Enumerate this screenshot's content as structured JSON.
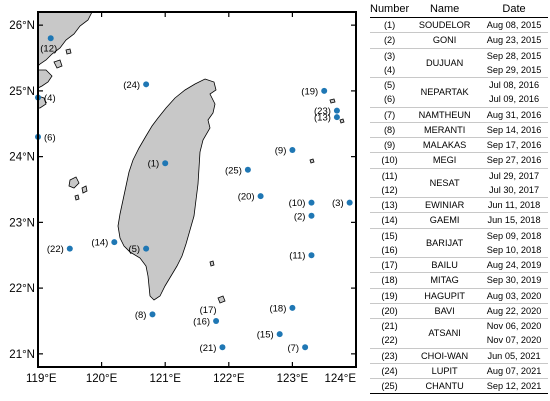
{
  "map": {
    "lat_labels": [
      "26°N",
      "25°N",
      "24°N",
      "23°N",
      "22°N",
      "21°N"
    ],
    "lon_labels": [
      "119°E",
      "120°E",
      "121°E",
      "122°E",
      "123°E",
      "124°E"
    ],
    "lat_values": [
      26,
      25,
      24,
      23,
      22,
      21
    ],
    "lon_values": [
      119,
      120,
      121,
      122,
      123,
      124
    ],
    "lat_range": [
      20.8,
      26.2
    ],
    "lon_range": [
      119.0,
      124.0
    ],
    "land_color": "#c8c8c8",
    "point_color": "#1f77b4",
    "points": [
      {
        "label": "(1)",
        "lat": 23.9,
        "lon": 121.0,
        "label_side": "left"
      },
      {
        "label": "(2)",
        "lat": 23.1,
        "lon": 123.3,
        "label_side": "left"
      },
      {
        "label": "(3)",
        "lat": 23.3,
        "lon": 123.9,
        "label_side": "left"
      },
      {
        "label": "(4)",
        "lat": 24.9,
        "lon": 119.0,
        "label_side": "right"
      },
      {
        "label": "(5)",
        "lat": 22.6,
        "lon": 120.7,
        "label_side": "left"
      },
      {
        "label": "(6)",
        "lat": 24.3,
        "lon": 119.0,
        "label_side": "right"
      },
      {
        "label": "(7)",
        "lat": 21.1,
        "lon": 123.2,
        "label_side": "left"
      },
      {
        "label": "(8)",
        "lat": 21.6,
        "lon": 120.8,
        "label_side": "left"
      },
      {
        "label": "(9)",
        "lat": 24.1,
        "lon": 123.0,
        "label_side": "left"
      },
      {
        "label": "(10)",
        "lat": 23.3,
        "lon": 123.3,
        "label_side": "left"
      },
      {
        "label": "(11)",
        "lat": 22.5,
        "lon": 123.3,
        "label_side": "left"
      },
      {
        "label": "(12)",
        "lat": 25.8,
        "lon": 119.2,
        "label_side": "below"
      },
      {
        "label": "(13)",
        "lat": 24.6,
        "lon": 123.7,
        "label_side": "left"
      },
      {
        "label": "(14)",
        "lat": 22.7,
        "lon": 120.2,
        "label_side": "left"
      },
      {
        "label": "(15)",
        "lat": 21.3,
        "lon": 122.8,
        "label_side": "left"
      },
      {
        "label": "(16)",
        "lat": 21.5,
        "lon": 121.8,
        "label_side": "left"
      },
      {
        "label": "(17)",
        "lat": 21.5,
        "lon": 121.8,
        "label_side": "above"
      },
      {
        "label": "(18)",
        "lat": 21.7,
        "lon": 123.0,
        "label_side": "left"
      },
      {
        "label": "(19)",
        "lat": 25.0,
        "lon": 123.5,
        "label_side": "left"
      },
      {
        "label": "(20)",
        "lat": 23.4,
        "lon": 122.5,
        "label_side": "left"
      },
      {
        "label": "(21)",
        "lat": 21.1,
        "lon": 121.9,
        "label_side": "left"
      },
      {
        "label": "(22)",
        "lat": 22.6,
        "lon": 119.5,
        "label_side": "left"
      },
      {
        "label": "(23)",
        "lat": 24.7,
        "lon": 123.7,
        "label_side": "left"
      },
      {
        "label": "(24)",
        "lat": 25.1,
        "lon": 120.7,
        "label_side": "left"
      },
      {
        "label": "(25)",
        "lat": 23.8,
        "lon": 122.3,
        "label_side": "left"
      }
    ]
  },
  "table": {
    "headers": [
      "Number",
      "Name",
      "Date"
    ],
    "rows": [
      [
        "(1)",
        "SOUDELOR",
        "Aug 08, 2015"
      ],
      [
        "(2)",
        "GONI",
        "Aug 23, 2015"
      ],
      [
        "(3)",
        "DUJUAN",
        "Sep 28, 2015"
      ],
      [
        "(4)",
        "",
        "Sep 29, 2015"
      ],
      [
        "(5)",
        "NEPARTAK",
        "Jul 08, 2016"
      ],
      [
        "(6)",
        "",
        "Jul 09, 2016"
      ],
      [
        "(7)",
        "NAMTHEUN",
        "Aug 31, 2016"
      ],
      [
        "(8)",
        "MERANTI",
        "Sep 14, 2016"
      ],
      [
        "(9)",
        "MALAKAS",
        "Sep 17, 2016"
      ],
      [
        "(10)",
        "MEGI",
        "Sep 27, 2016"
      ],
      [
        "(11)",
        "NESAT",
        "Jul 29, 2017"
      ],
      [
        "(12)",
        "",
        "Jul 30, 2017"
      ],
      [
        "(13)",
        "EWINIAR",
        "Jun 11, 2018"
      ],
      [
        "(14)",
        "GAEMI",
        "Jun 15, 2018"
      ],
      [
        "(15)",
        "BARIJAT",
        "Sep 09, 2018"
      ],
      [
        "(16)",
        "",
        "Sep 10, 2018"
      ],
      [
        "(17)",
        "BAILU",
        "Aug 24, 2019"
      ],
      [
        "(18)",
        "MITAG",
        "Sep 30, 2019"
      ],
      [
        "(19)",
        "HAGUPIT",
        "Aug 03, 2020"
      ],
      [
        "(20)",
        "BAVI",
        "Aug 22, 2020"
      ],
      [
        "(21)",
        "ATSANI",
        "Nov 06, 2020"
      ],
      [
        "(22)",
        "",
        "Nov 07, 2020"
      ],
      [
        "(23)",
        "CHOI-WAN",
        "Jun 05, 2021"
      ],
      [
        "(24)",
        "LUPIT",
        "Aug 07, 2021"
      ],
      [
        "(25)",
        "CHANTU",
        "Sep 12, 2021"
      ]
    ]
  }
}
